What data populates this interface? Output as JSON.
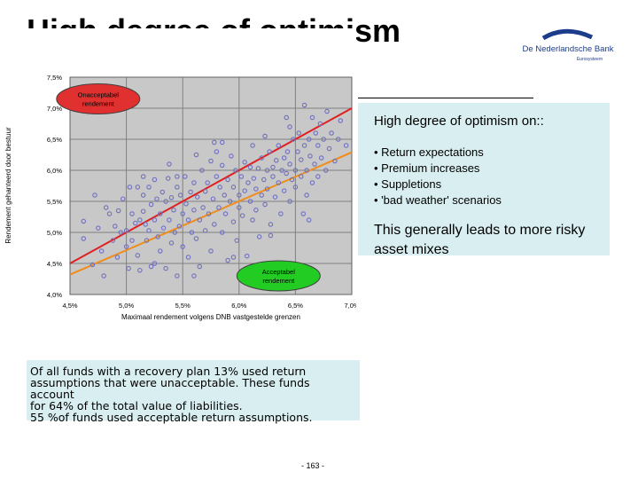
{
  "page": {
    "title": "High degree of optimism",
    "page_number": "- 163 -"
  },
  "logo": {
    "line1": "De Nederlandsche Bank",
    "line2": "Eurosysteem"
  },
  "infobox": {
    "heading": "High degree of optimism on::",
    "bullets": [
      "• Return expectations",
      "• Premium increases",
      "• Suppletions",
      "• 'bad weather' scenarios"
    ],
    "lead": "This generally leads to more risky asset mixes"
  },
  "note": {
    "lines": [
      "Of all funds with a recovery plan 13% used return",
      "assumptions that were unacceptable. These funds account",
      "for 64% of the total value of liabilities.",
      "55 %of funds used acceptable return assumptions."
    ]
  },
  "chart_data": {
    "type": "scatter",
    "xlabel": "Maximaal rendement volgens DNB vastgestelde grenzen",
    "ylabel": "Rendement gehanteerd door bestuur",
    "xlim": [
      4.5,
      7.0
    ],
    "ylim": [
      4.0,
      7.5
    ],
    "x_ticks": [
      4.5,
      5.0,
      5.5,
      6.0,
      6.5,
      7.0
    ],
    "x_tick_labels": [
      "4,5%",
      "5,0%",
      "5,5%",
      "6,0%",
      "6,5%",
      "7,0%"
    ],
    "y_ticks": [
      4.0,
      4.5,
      5.0,
      5.5,
      6.0,
      6.5,
      7.0,
      7.5
    ],
    "y_tick_labels": [
      "4,0%",
      "4,5%",
      "5,0%",
      "5,5%",
      "6,0%",
      "6,5%",
      "7,0%",
      "7,5%"
    ],
    "grid": true,
    "annotations": [
      {
        "text": "Onacceptabel rendement",
        "x": 4.75,
        "y": 7.15,
        "color": "#e03030"
      },
      {
        "text": "Acceptabel rendement",
        "x": 6.35,
        "y": 4.3,
        "color": "#22cc22"
      }
    ],
    "lines": [
      {
        "color": "#e02020",
        "points": [
          [
            4.5,
            4.5
          ],
          [
            7.0,
            7.0
          ]
        ]
      },
      {
        "color": "#f08c1a",
        "points": [
          [
            4.5,
            4.32
          ],
          [
            7.0,
            6.29
          ]
        ]
      }
    ],
    "colors": {
      "points": "#7070c0",
      "plot_bg": "#c8c8c8",
      "frame_bg": "#ffffff"
    },
    "points": [
      [
        4.62,
        5.18
      ],
      [
        4.62,
        4.9
      ],
      [
        4.7,
        4.48
      ],
      [
        4.75,
        5.07
      ],
      [
        4.78,
        4.7
      ],
      [
        4.8,
        4.3
      ],
      [
        4.82,
        5.4
      ],
      [
        4.85,
        5.3
      ],
      [
        4.88,
        4.87
      ],
      [
        4.9,
        5.1
      ],
      [
        4.92,
        4.6
      ],
      [
        4.95,
        5.0
      ],
      [
        4.97,
        5.54
      ],
      [
        5.0,
        5.03
      ],
      [
        5.0,
        4.77
      ],
      [
        5.02,
        4.42
      ],
      [
        5.05,
        5.3
      ],
      [
        5.05,
        4.87
      ],
      [
        5.08,
        5.15
      ],
      [
        5.1,
        5.73
      ],
      [
        5.1,
        4.63
      ],
      [
        5.12,
        5.2
      ],
      [
        5.12,
        4.39
      ],
      [
        5.15,
        5.6
      ],
      [
        5.15,
        5.34
      ],
      [
        5.17,
        5.13
      ],
      [
        5.18,
        4.87
      ],
      [
        5.2,
        5.73
      ],
      [
        5.2,
        5.03
      ],
      [
        5.22,
        4.45
      ],
      [
        5.22,
        5.45
      ],
      [
        5.25,
        5.85
      ],
      [
        5.25,
        5.2
      ],
      [
        5.27,
        5.54
      ],
      [
        5.28,
        4.93
      ],
      [
        5.3,
        5.3
      ],
      [
        5.3,
        4.7
      ],
      [
        5.32,
        5.65
      ],
      [
        5.33,
        5.07
      ],
      [
        5.35,
        5.5
      ],
      [
        5.35,
        4.42
      ],
      [
        5.37,
        5.87
      ],
      [
        5.38,
        5.2
      ],
      [
        5.4,
        5.56
      ],
      [
        5.4,
        4.83
      ],
      [
        5.42,
        5.36
      ],
      [
        5.43,
        5.0
      ],
      [
        5.45,
        4.3
      ],
      [
        5.45,
        5.73
      ],
      [
        5.47,
        5.1
      ],
      [
        5.48,
        5.6
      ],
      [
        5.5,
        5.3
      ],
      [
        5.5,
        4.77
      ],
      [
        5.52,
        5.9
      ],
      [
        5.53,
        5.46
      ],
      [
        5.55,
        5.2
      ],
      [
        5.55,
        4.6
      ],
      [
        5.57,
        5.65
      ],
      [
        5.58,
        5.0
      ],
      [
        5.6,
        5.8
      ],
      [
        5.6,
        5.36
      ],
      [
        5.62,
        4.9
      ],
      [
        5.63,
        5.57
      ],
      [
        5.65,
        5.2
      ],
      [
        5.65,
        4.45
      ],
      [
        5.67,
        6.0
      ],
      [
        5.68,
        5.4
      ],
      [
        5.7,
        5.66
      ],
      [
        5.7,
        5.03
      ],
      [
        5.72,
        5.8
      ],
      [
        5.73,
        5.3
      ],
      [
        5.75,
        6.15
      ],
      [
        5.75,
        4.7
      ],
      [
        5.77,
        5.54
      ],
      [
        5.78,
        5.13
      ],
      [
        5.8,
        5.9
      ],
      [
        5.8,
        6.3
      ],
      [
        5.82,
        5.4
      ],
      [
        5.83,
        5.73
      ],
      [
        5.85,
        5.0
      ],
      [
        5.85,
        6.08
      ],
      [
        5.87,
        5.6
      ],
      [
        5.88,
        5.3
      ],
      [
        5.9,
        5.85
      ],
      [
        5.9,
        4.55
      ],
      [
        5.92,
        5.5
      ],
      [
        5.93,
        6.23
      ],
      [
        5.95,
        5.17
      ],
      [
        5.95,
        5.73
      ],
      [
        5.97,
        6.0
      ],
      [
        5.98,
        4.87
      ],
      [
        6.0,
        5.6
      ],
      [
        6.0,
        5.4
      ],
      [
        6.02,
        5.9
      ],
      [
        6.03,
        5.27
      ],
      [
        6.05,
        6.13
      ],
      [
        6.05,
        5.67
      ],
      [
        6.07,
        4.62
      ],
      [
        6.08,
        5.8
      ],
      [
        6.1,
        5.5
      ],
      [
        6.1,
        6.05
      ],
      [
        6.12,
        5.2
      ],
      [
        6.13,
        5.87
      ],
      [
        6.15,
        5.36
      ],
      [
        6.15,
        5.7
      ],
      [
        6.17,
        6.03
      ],
      [
        6.18,
        4.93
      ],
      [
        6.2,
        5.6
      ],
      [
        6.2,
        6.2
      ],
      [
        6.22,
        5.85
      ],
      [
        6.23,
        5.45
      ],
      [
        6.25,
        6.0
      ],
      [
        6.25,
        5.7
      ],
      [
        6.27,
        6.3
      ],
      [
        6.28,
        5.13
      ],
      [
        6.3,
        5.9
      ],
      [
        6.3,
        6.05
      ],
      [
        6.32,
        5.57
      ],
      [
        6.33,
        6.16
      ],
      [
        6.35,
        5.8
      ],
      [
        6.35,
        6.4
      ],
      [
        6.37,
        5.3
      ],
      [
        6.38,
        6.0
      ],
      [
        6.4,
        6.2
      ],
      [
        6.4,
        5.67
      ],
      [
        6.42,
        5.95
      ],
      [
        6.43,
        6.3
      ],
      [
        6.45,
        5.5
      ],
      [
        6.45,
        6.1
      ],
      [
        6.47,
        5.85
      ],
      [
        6.48,
        6.5
      ],
      [
        6.5,
        6.0
      ],
      [
        6.5,
        5.73
      ],
      [
        6.52,
        6.3
      ],
      [
        6.53,
        6.6
      ],
      [
        6.55,
        5.9
      ],
      [
        6.55,
        6.17
      ],
      [
        6.57,
        5.3
      ],
      [
        6.58,
        6.4
      ],
      [
        6.6,
        6.0
      ],
      [
        6.6,
        5.6
      ],
      [
        6.62,
        6.5
      ],
      [
        6.63,
        6.23
      ],
      [
        6.65,
        5.8
      ],
      [
        6.65,
        6.85
      ],
      [
        6.67,
        6.1
      ],
      [
        6.68,
        6.6
      ],
      [
        6.7,
        6.4
      ],
      [
        6.7,
        5.9
      ],
      [
        6.72,
        6.75
      ],
      [
        6.73,
        6.2
      ],
      [
        6.75,
        6.5
      ],
      [
        6.77,
        6.0
      ],
      [
        6.78,
        6.95
      ],
      [
        6.8,
        6.35
      ],
      [
        6.82,
        6.6
      ],
      [
        6.85,
        6.15
      ],
      [
        6.88,
        6.5
      ],
      [
        6.9,
        6.8
      ],
      [
        6.95,
        6.4
      ],
      [
        5.03,
        5.73
      ],
      [
        5.25,
        4.5
      ],
      [
        5.45,
        5.9
      ],
      [
        5.6,
        4.3
      ],
      [
        5.78,
        6.45
      ],
      [
        5.95,
        4.6
      ],
      [
        6.12,
        6.4
      ],
      [
        6.28,
        4.95
      ],
      [
        6.45,
        6.7
      ],
      [
        6.62,
        5.2
      ],
      [
        4.72,
        5.6
      ],
      [
        4.93,
        5.35
      ],
      [
        5.15,
        5.9
      ],
      [
        5.38,
        6.1
      ],
      [
        5.62,
        6.25
      ],
      [
        5.85,
        6.45
      ],
      [
        6.05,
        4.3
      ],
      [
        6.23,
        6.55
      ],
      [
        6.42,
        6.85
      ],
      [
        6.58,
        7.05
      ]
    ]
  }
}
